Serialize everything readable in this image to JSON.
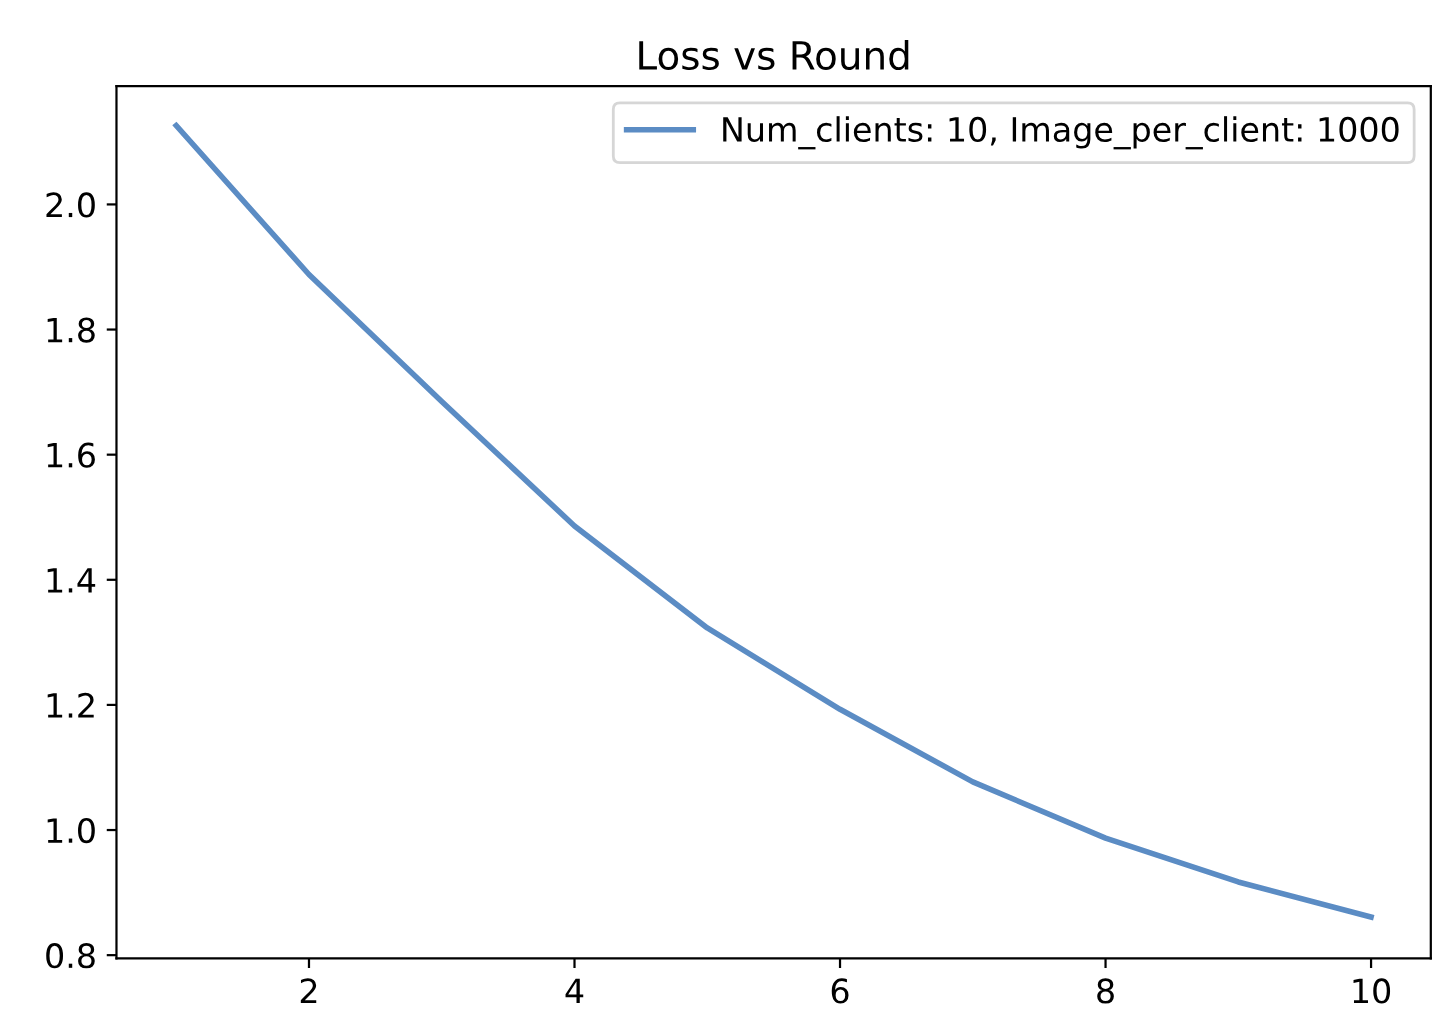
{
  "chart_data": {
    "type": "line",
    "title": "Loss vs Round",
    "x": [
      1,
      2,
      3,
      4,
      5,
      6,
      7,
      8,
      9,
      10
    ],
    "series": [
      {
        "name": "Num_clients: 10, Image_per_client: 1000",
        "color": "#5b8cc4",
        "values": [
          2.126,
          1.888,
          1.685,
          1.486,
          1.323,
          1.193,
          1.077,
          0.987,
          0.917,
          0.861
        ]
      }
    ],
    "xlim": [
      0.55,
      10.45
    ],
    "xticks": [
      2,
      4,
      6,
      8,
      10
    ],
    "ylim": [
      0.795,
      2.189
    ],
    "yticks": [
      0.8,
      {
        "value": 1.0,
        "label": "1.0"
      },
      1.2,
      1.4,
      1.6,
      1.8,
      {
        "value": 2.0,
        "label": "2.0"
      }
    ],
    "legend": "top right",
    "grid": false,
    "marker": "none",
    "line_style": "solid"
  }
}
